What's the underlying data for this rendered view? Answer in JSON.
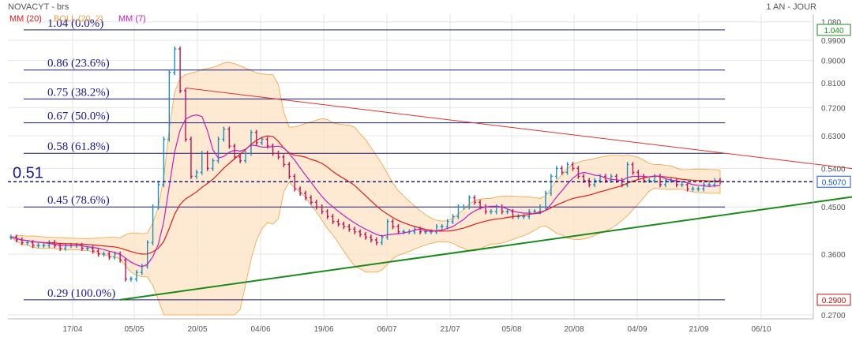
{
  "header": {
    "title": "NOVACYT - brs",
    "period": "1 AN - JOUR"
  },
  "legend": [
    {
      "label": "MM (20)",
      "color": "#e01b1b"
    },
    {
      "label": "BOLL (20, 2)",
      "color": "#f0a040"
    },
    {
      "label": "MM (7)",
      "color": "#c020c0"
    }
  ],
  "chart_data": {
    "type": "candlestick",
    "y_scale": "log",
    "ylim": [
      0.265,
      1.12
    ],
    "y_ticks": [
      "1.080",
      "0.9900",
      "0.9000",
      "0.8100",
      "0.7200",
      "0.6300",
      "0.5400",
      "0.4500",
      "0.3600",
      "0.2700"
    ],
    "x_ticks": [
      "17/04",
      "05/05",
      "20/05",
      "04/06",
      "19/06",
      "06/07",
      "21/07",
      "05/08",
      "20/08",
      "04/09",
      "21/09",
      "06/10"
    ],
    "current_price": "0.5070",
    "max_marker": "1.040",
    "min_marker": "0.2900",
    "level_left_label": "0.51",
    "fib_levels": [
      {
        "value": 1.04,
        "label": "1.04  (0.0%)"
      },
      {
        "value": 0.86,
        "label": "0.86  (23.6%)"
      },
      {
        "value": 0.75,
        "label": "0.75  (38.2%)"
      },
      {
        "value": 0.67,
        "label": "0.67  (50.0%)"
      },
      {
        "value": 0.58,
        "label": "0.58  (61.8%)"
      },
      {
        "value": 0.45,
        "label": "0.45  (78.6%)"
      },
      {
        "value": 0.29,
        "label": "0.29  (100.0%)"
      }
    ],
    "closes": [
      0.39,
      0.385,
      0.38,
      0.38,
      0.375,
      0.375,
      0.375,
      0.38,
      0.375,
      0.37,
      0.375,
      0.375,
      0.375,
      0.37,
      0.37,
      0.365,
      0.36,
      0.36,
      0.355,
      0.36,
      0.35,
      0.32,
      0.32,
      0.33,
      0.34,
      0.38,
      0.45,
      0.5,
      0.62,
      0.85,
      0.95,
      0.78,
      0.62,
      0.52,
      0.53,
      0.58,
      0.54,
      0.56,
      0.62,
      0.65,
      0.6,
      0.57,
      0.56,
      0.58,
      0.64,
      0.61,
      0.62,
      0.6,
      0.58,
      0.57,
      0.55,
      0.52,
      0.49,
      0.48,
      0.47,
      0.46,
      0.45,
      0.44,
      0.43,
      0.42,
      0.415,
      0.41,
      0.405,
      0.4,
      0.395,
      0.39,
      0.385,
      0.38,
      0.39,
      0.42,
      0.41,
      0.4,
      0.4,
      0.4,
      0.405,
      0.4,
      0.4,
      0.4,
      0.41,
      0.41,
      0.42,
      0.43,
      0.45,
      0.45,
      0.47,
      0.46,
      0.45,
      0.44,
      0.44,
      0.45,
      0.44,
      0.44,
      0.43,
      0.43,
      0.43,
      0.44,
      0.44,
      0.45,
      0.48,
      0.52,
      0.54,
      0.53,
      0.55,
      0.54,
      0.52,
      0.51,
      0.5,
      0.51,
      0.52,
      0.51,
      0.52,
      0.51,
      0.5,
      0.55,
      0.53,
      0.52,
      0.51,
      0.51,
      0.52,
      0.5,
      0.51,
      0.51,
      0.5,
      0.5,
      0.49,
      0.49,
      0.49,
      0.5,
      0.5,
      0.51,
      0.507
    ],
    "overlay_lines": [
      {
        "name": "resistance",
        "color": "#e03030",
        "from": [
          0.79,
          32
        ],
        "to": [
          0.507,
          174
        ]
      },
      {
        "name": "support",
        "color": "#1a8a1a",
        "from": [
          0.29,
          20
        ],
        "to": [
          0.507,
          174
        ]
      }
    ]
  }
}
